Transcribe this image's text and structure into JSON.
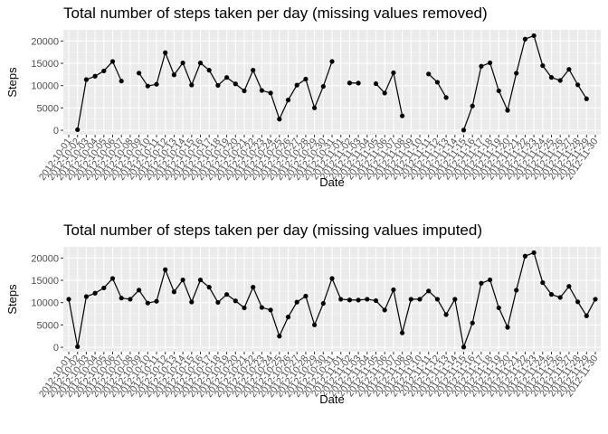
{
  "chart_data": [
    {
      "type": "line",
      "title": "Total number of steps taken per day (missing values removed)",
      "xlabel": "Date",
      "ylabel": "Steps",
      "ylim": [
        -1000,
        22500
      ],
      "yticks": [
        0,
        5000,
        10000,
        15000,
        20000
      ],
      "grid": true,
      "background": "#ebebeb",
      "line_color": "#000000",
      "x": [
        "2012-10-01",
        "2012-10-02",
        "2012-10-03",
        "2012-10-04",
        "2012-10-05",
        "2012-10-06",
        "2012-10-07",
        "2012-10-08",
        "2012-10-09",
        "2012-10-10",
        "2012-10-11",
        "2012-10-12",
        "2012-10-13",
        "2012-10-14",
        "2012-10-15",
        "2012-10-16",
        "2012-10-17",
        "2012-10-18",
        "2012-10-19",
        "2012-10-20",
        "2012-10-21",
        "2012-10-22",
        "2012-10-23",
        "2012-10-24",
        "2012-10-25",
        "2012-10-26",
        "2012-10-27",
        "2012-10-28",
        "2012-10-29",
        "2012-10-30",
        "2012-10-31",
        "2012-11-01",
        "2012-11-02",
        "2012-11-03",
        "2012-11-04",
        "2012-11-05",
        "2012-11-06",
        "2012-11-07",
        "2012-11-08",
        "2012-11-09",
        "2012-11-10",
        "2012-11-11",
        "2012-11-12",
        "2012-11-13",
        "2012-11-14",
        "2012-11-15",
        "2012-11-16",
        "2012-11-17",
        "2012-11-18",
        "2012-11-19",
        "2012-11-20",
        "2012-11-21",
        "2012-11-22",
        "2012-11-23",
        "2012-11-24",
        "2012-11-25",
        "2012-11-26",
        "2012-11-27",
        "2012-11-28",
        "2012-11-29",
        "2012-11-30"
      ],
      "y": [
        null,
        126,
        11352,
        12116,
        13294,
        15420,
        11015,
        null,
        12811,
        9900,
        10304,
        17382,
        12426,
        15098,
        10139,
        15084,
        13452,
        10056,
        11829,
        10395,
        8821,
        13460,
        8918,
        8355,
        2492,
        6778,
        10119,
        11458,
        5018,
        9819,
        15414,
        null,
        10600,
        10571,
        null,
        10439,
        8334,
        12883,
        3219,
        null,
        null,
        12608,
        10765,
        7336,
        null,
        41,
        5441,
        14339,
        15110,
        8841,
        4472,
        12787,
        20427,
        21194,
        14478,
        11834,
        11162,
        13646,
        10183,
        7047,
        null
      ]
    },
    {
      "type": "line",
      "title": "Total number of steps taken per day (missing values imputed)",
      "xlabel": "Date",
      "ylabel": "Steps",
      "ylim": [
        -1000,
        22500
      ],
      "yticks": [
        0,
        5000,
        10000,
        15000,
        20000
      ],
      "grid": true,
      "background": "#ebebeb",
      "line_color": "#000000",
      "x": [
        "2012-10-01",
        "2012-10-02",
        "2012-10-03",
        "2012-10-04",
        "2012-10-05",
        "2012-10-06",
        "2012-10-07",
        "2012-10-08",
        "2012-10-09",
        "2012-10-10",
        "2012-10-11",
        "2012-10-12",
        "2012-10-13",
        "2012-10-14",
        "2012-10-15",
        "2012-10-16",
        "2012-10-17",
        "2012-10-18",
        "2012-10-19",
        "2012-10-20",
        "2012-10-21",
        "2012-10-22",
        "2012-10-23",
        "2012-10-24",
        "2012-10-25",
        "2012-10-26",
        "2012-10-27",
        "2012-10-28",
        "2012-10-29",
        "2012-10-30",
        "2012-10-31",
        "2012-11-01",
        "2012-11-02",
        "2012-11-03",
        "2012-11-04",
        "2012-11-05",
        "2012-11-06",
        "2012-11-07",
        "2012-11-08",
        "2012-11-09",
        "2012-11-10",
        "2012-11-11",
        "2012-11-12",
        "2012-11-13",
        "2012-11-14",
        "2012-11-15",
        "2012-11-16",
        "2012-11-17",
        "2012-11-18",
        "2012-11-19",
        "2012-11-20",
        "2012-11-21",
        "2012-11-22",
        "2012-11-23",
        "2012-11-24",
        "2012-11-25",
        "2012-11-26",
        "2012-11-27",
        "2012-11-28",
        "2012-11-29",
        "2012-11-30"
      ],
      "y": [
        10766,
        126,
        11352,
        12116,
        13294,
        15420,
        11015,
        10766,
        12811,
        9900,
        10304,
        17382,
        12426,
        15098,
        10139,
        15084,
        13452,
        10056,
        11829,
        10395,
        8821,
        13460,
        8918,
        8355,
        2492,
        6778,
        10119,
        11458,
        5018,
        9819,
        15414,
        10766,
        10600,
        10571,
        10766,
        10439,
        8334,
        12883,
        3219,
        10766,
        10766,
        12608,
        10765,
        7336,
        10766,
        41,
        5441,
        14339,
        15110,
        8841,
        4472,
        12787,
        20427,
        21194,
        14478,
        11834,
        11162,
        13646,
        10183,
        7047,
        10766
      ]
    }
  ]
}
